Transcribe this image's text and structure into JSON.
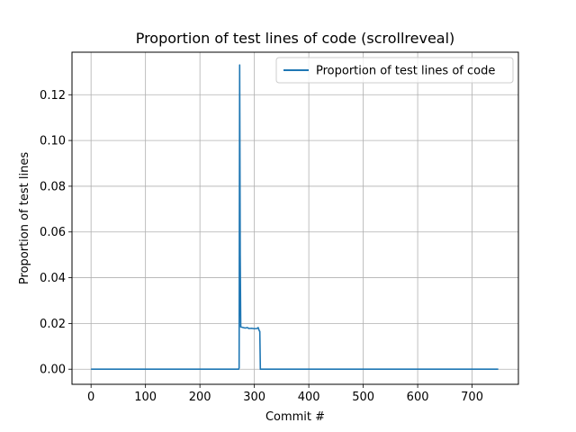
{
  "chart_data": {
    "type": "line",
    "title": "Proportion of test lines of code (scrollreveal)",
    "xlabel": "Commit #",
    "ylabel": "Proportion of test lines",
    "xlim": [
      -35,
      785
    ],
    "ylim": [
      -0.0066,
      0.1386
    ],
    "xticks": [
      0,
      100,
      200,
      300,
      400,
      500,
      600,
      700
    ],
    "yticks": [
      0.0,
      0.02,
      0.04,
      0.06,
      0.08,
      0.1,
      0.12
    ],
    "ytick_labels": [
      "0.00",
      "0.02",
      "0.04",
      "0.06",
      "0.08",
      "0.10",
      "0.12"
    ],
    "grid": true,
    "legend_position": "top-right",
    "line_color": "#1f77b4",
    "series": [
      {
        "name": "Proportion of test lines of code",
        "x": [
          0,
          100,
          200,
          271,
          272,
          273,
          274,
          275,
          278,
          283,
          287,
          290,
          295,
          300,
          305,
          307,
          308,
          309,
          310,
          311,
          320,
          400,
          500,
          600,
          700,
          748
        ],
        "y": [
          0,
          0,
          0,
          0,
          0.0005,
          0.133,
          0.05,
          0.0185,
          0.0183,
          0.018,
          0.0182,
          0.0178,
          0.0179,
          0.0177,
          0.0178,
          0.0182,
          0.0175,
          0.0168,
          0.0165,
          0,
          0,
          0,
          0,
          0,
          0,
          0
        ]
      }
    ]
  }
}
